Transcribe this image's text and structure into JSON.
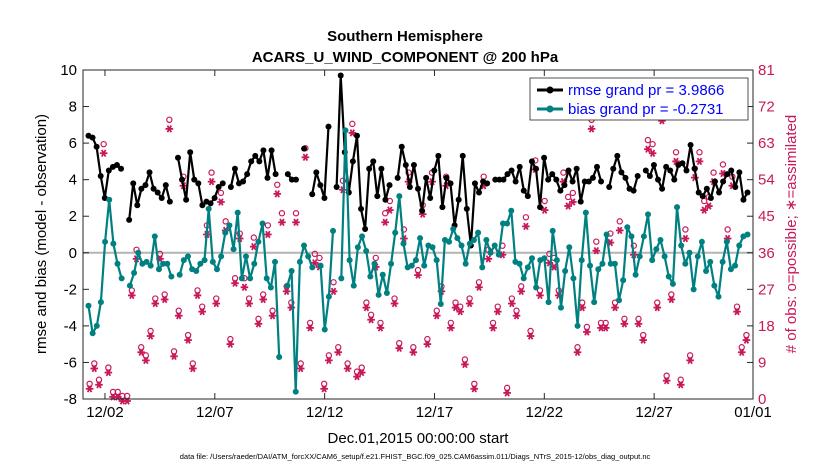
{
  "chart_data": {
    "type": "line",
    "title": "Southern Hemisphere",
    "subtitle": "ACARS_U_WIND_COMPONENT @ 200 hPa",
    "xlabel": "Dec.01,2015 00:00:00 start",
    "ylabel": "rmse and bias (model - observation)",
    "ylabel_right": "# of obs: o=possible; ∗=assimilated",
    "footnote": "data file: /Users/raeder/DAI/ATM_forcXX/CAM6_setup/f.e21.FHIST_BGC.f09_025.CAM6assim.011/Diags_NTrS_2015-12/obs_diag_output.nc",
    "xlim": [
      0.5,
      31.0
    ],
    "ylim": [
      -8,
      10
    ],
    "ylim_right": [
      0,
      81
    ],
    "x_ticks": [
      {
        "v": 1.5,
        "label": "12/02"
      },
      {
        "v": 6.5,
        "label": "12/07"
      },
      {
        "v": 11.5,
        "label": "12/12"
      },
      {
        "v": 16.5,
        "label": "12/17"
      },
      {
        "v": 21.5,
        "label": "12/22"
      },
      {
        "v": 26.5,
        "label": "12/27"
      },
      {
        "v": 31.0,
        "label": "01/01"
      }
    ],
    "y_ticks": [
      -8,
      -6,
      -4,
      -2,
      0,
      2,
      4,
      6,
      8,
      10
    ],
    "y_ticks_right": [
      0,
      9,
      18,
      27,
      36,
      45,
      54,
      63,
      72,
      81
    ],
    "legend_position": "top-right",
    "colors": {
      "rmse": "#000000",
      "bias": "#008080",
      "obs": "#c8185a",
      "zero_line": "#b4b4b4"
    },
    "series": [
      {
        "name": "rmse grand pr = 3.9866",
        "key": "rmse",
        "values": [
          6.4,
          6.3,
          5.8,
          4.2,
          3.0,
          4.5,
          4.7,
          4.8,
          4.6,
          null,
          1.8,
          3.8,
          2.6,
          3.5,
          3.7,
          4.4,
          3.5,
          3.3,
          3.0,
          3.7,
          2.8,
          null,
          5.2,
          4.0,
          2.9,
          5.5,
          4.0,
          3.8,
          2.6,
          2.8,
          2.7,
          3.0,
          3.6,
          3.8,
          null,
          3.6,
          4.6,
          3.8,
          3.9,
          4.3,
          5.0,
          5.3,
          5.0,
          5.6,
          4.1,
          5.6,
          4.3,
          null,
          null,
          4.3,
          4.0,
          4.0,
          null,
          5.7,
          null,
          3.2,
          4.4,
          3.7,
          3.0,
          6.9,
          null,
          3.6,
          9.7,
          5.5,
          3.3,
          5.0,
          6.4,
          2.4,
          1.3,
          4.6,
          5.0,
          3.1,
          4.6,
          2.9,
          3.7,
          null,
          4.1,
          5.8,
          4.8,
          3.6,
          4.8,
          3.5,
          2.3,
          4.1,
          3.0,
          4.5,
          5.3,
          2.5,
          4.1,
          3.8,
          1.5,
          2.9,
          5.3,
          2.4,
          0.4,
          3.8,
          3.3,
          3.9,
          3.8,
          null,
          4.0,
          4.0,
          4.0,
          4.3,
          4.5,
          3.9,
          4.7,
          3.4,
          3.1,
          5.0,
          4.6,
          2.5,
          5.2,
          4.0,
          4.3,
          4.0,
          3.4,
          3.7,
          4.5,
          3.9,
          4.6,
          2.8,
          3.9,
          3.9,
          4.1,
          4.7,
          3.9,
          null,
          3.6,
          4.6,
          5.3,
          4.4,
          4.1,
          3.5,
          3.4,
          4.2,
          null,
          4.5,
          4.2,
          4.8,
          4.0,
          3.5,
          4.7,
          4.5,
          4.0,
          4.8,
          4.9,
          4.5,
          5.9,
          4.6,
          3.3,
          3.1,
          3.5,
          3.0,
          3.9,
          3.3,
          3.9,
          4.3,
          4.5,
          3.6,
          4.4,
          2.9,
          3.3
        ],
        "note": null
      },
      {
        "name": "bias grand pr = -0.2731",
        "key": "bias",
        "values": [
          -2.9,
          -4.4,
          -4.0,
          -2.7,
          0.6,
          2.9,
          0.5,
          -0.6,
          -1.4,
          null,
          -1.8,
          -1.1,
          0.0,
          -0.6,
          -0.5,
          -0.7,
          0.9,
          -0.9,
          -0.6,
          -0.6,
          -1.3,
          null,
          -1.2,
          -0.4,
          -0.2,
          -0.9,
          -1.0,
          -0.6,
          -0.4,
          2.4,
          -0.5,
          -0.9,
          -0.2,
          1.1,
          1.5,
          0.2,
          2.2,
          -1.4,
          -0.2,
          -1.4,
          -0.6,
          0.6,
          1.6,
          -1.4,
          -1.9,
          -0.5,
          -5.7,
          null,
          -1.8,
          -1.0,
          -7.6,
          -0.5,
          0.4,
          -0.2,
          -0.8,
          null,
          -0.7,
          -4.2,
          -2.4,
          1.2,
          null,
          -1.4,
          6.7,
          -0.4,
          -1.8,
          0.3,
          0.9,
          0.1,
          -1.3,
          -0.6,
          -2.3,
          -1.2,
          -2.2,
          -0.6,
          1.1,
          3.1,
          0.5,
          -0.8,
          -0.7,
          -0.4,
          0.8,
          -0.7,
          0.4,
          0.3,
          -0.4,
          -2.8,
          0.7,
          0.6,
          1.3,
          0.8,
          0.4,
          -0.6,
          0.5,
          0.7,
          1.1,
          -0.8,
          0.7,
          0.0,
          0.4,
          -0.1,
          1.6,
          1.6,
          2.3,
          -0.5,
          -0.6,
          -1.4,
          -0.8,
          -0.3,
          -1.9,
          -0.4,
          -0.3,
          -2.7,
          1.2,
          -0.4,
          -3.0,
          -1.0,
          0.3,
          -1.4,
          -4.0,
          -0.4,
          2.2,
          -0.7,
          -2.7,
          -0.9,
          -0.6,
          1.0,
          -0.6,
          -0.6,
          -2.6,
          -1.5,
          1.4,
          0.9,
          -1.2,
          -0.2,
          0.9,
          2.1,
          -0.4,
          0.2,
          0.7,
          -0.2,
          -1.3,
          -1.7,
          2.5,
          0.4,
          -0.6,
          0.0,
          -2.0,
          -0.2,
          0.6,
          -1.0,
          -0.5,
          -1.8,
          -2.4,
          -0.5,
          0.6,
          -0.9,
          -0.7,
          0.4,
          0.9,
          1.0
        ]
      },
      {
        "name": "",
        "key": "obs_possible",
        "values": [
          3,
          8,
          4,
          62,
          7,
          1,
          1,
          0,
          0,
          26,
          36,
          12,
          10,
          16,
          24,
          35,
          25,
          68,
          11,
          21,
          54,
          15,
          8,
          26,
          22,
          42,
          55,
          24,
          50,
          43,
          14,
          29,
          40,
          29,
          24,
          39,
          19,
          25,
          42,
          21,
          52,
          45,
          27,
          23,
          45,
          8,
          61,
          18,
          35,
          34,
          3,
          10,
          28,
          12,
          53,
          8,
          67,
          6,
          7,
          23,
          20,
          34,
          18,
          45,
          48,
          24,
          13,
          41,
          55,
          12,
          31,
          47,
          14,
          55,
          21,
          27,
          54,
          18,
          23,
          22,
          9,
          24,
          3,
          28,
          54,
          36,
          18,
          22,
          37,
          2,
          24,
          21,
          27,
          44,
          16,
          58,
          26,
          48,
          35,
          34,
          26,
          55,
          49,
          50,
          12,
          23,
          17,
          68,
          38,
          18,
          18,
          40,
          23,
          43,
          19,
          71,
          37,
          19,
          15,
          63,
          62,
          23,
          70,
          5,
          25,
          60,
          4,
          41,
          10,
          56,
          60,
          48,
          49,
          55,
          72,
          57,
          41,
          54,
          22,
          12,
          15
        ]
      },
      {
        "name": "",
        "key": "obs_assimilated",
        "values": [
          3,
          8,
          4,
          61,
          7,
          1,
          1,
          0,
          0,
          26,
          35,
          12,
          10,
          16,
          24,
          35,
          25,
          67,
          11,
          21,
          53,
          15,
          8,
          26,
          22,
          41,
          54,
          24,
          49,
          42,
          14,
          29,
          40,
          28,
          24,
          38,
          19,
          25,
          41,
          21,
          51,
          44,
          27,
          23,
          44,
          8,
          60,
          18,
          34,
          33,
          3,
          10,
          27,
          12,
          52,
          8,
          66,
          6,
          7,
          23,
          20,
          33,
          18,
          44,
          47,
          24,
          13,
          40,
          54,
          12,
          31,
          46,
          14,
          54,
          21,
          27,
          53,
          18,
          23,
          22,
          9,
          24,
          3,
          28,
          53,
          35,
          18,
          22,
          36,
          2,
          24,
          21,
          27,
          43,
          16,
          57,
          26,
          47,
          34,
          33,
          26,
          54,
          48,
          49,
          12,
          23,
          17,
          67,
          37,
          18,
          18,
          39,
          23,
          42,
          19,
          70,
          36,
          19,
          15,
          62,
          61,
          23,
          69,
          5,
          25,
          59,
          4,
          40,
          10,
          55,
          59,
          47,
          48,
          54,
          71,
          56,
          40,
          53,
          22,
          12,
          15
        ]
      }
    ]
  }
}
